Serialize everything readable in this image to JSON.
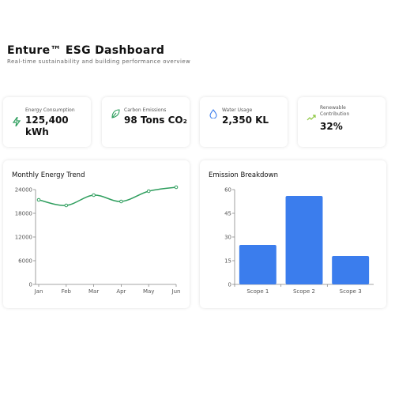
{
  "header": {
    "title": "Enture™ ESG Dashboard",
    "subtitle": "Real-time sustainability and building performance overview"
  },
  "kpis": [
    {
      "label": "Energy Consumption",
      "value": "125,400 kWh"
    },
    {
      "label": "Carbon Emissions",
      "value": "98 Tons CO₂"
    },
    {
      "label": "Water Usage",
      "value": "2,350 KL"
    },
    {
      "label": "Renewable Contribution",
      "value": "32%"
    }
  ],
  "chart_data": [
    {
      "type": "line",
      "title": "Monthly Energy Trend",
      "categories": [
        "Jan",
        "Feb",
        "Mar",
        "Apr",
        "May",
        "Jun"
      ],
      "series": [
        {
          "name": "Energy",
          "color": "#2f9e5e",
          "values": [
            21400,
            20000,
            22600,
            21000,
            23600,
            24600
          ]
        }
      ],
      "ylim": [
        0,
        24000
      ],
      "yticks": [
        0,
        6000,
        12000,
        18000,
        24000
      ],
      "grid": false
    },
    {
      "type": "bar",
      "title": "Emission Breakdown",
      "categories": [
        "Scope 1",
        "Scope 2",
        "Scope 3"
      ],
      "values": [
        25,
        56,
        18
      ],
      "color": "#3b7ded",
      "ylim": [
        0,
        60
      ],
      "yticks": [
        0,
        15,
        30,
        45,
        60
      ],
      "grid": false
    }
  ]
}
